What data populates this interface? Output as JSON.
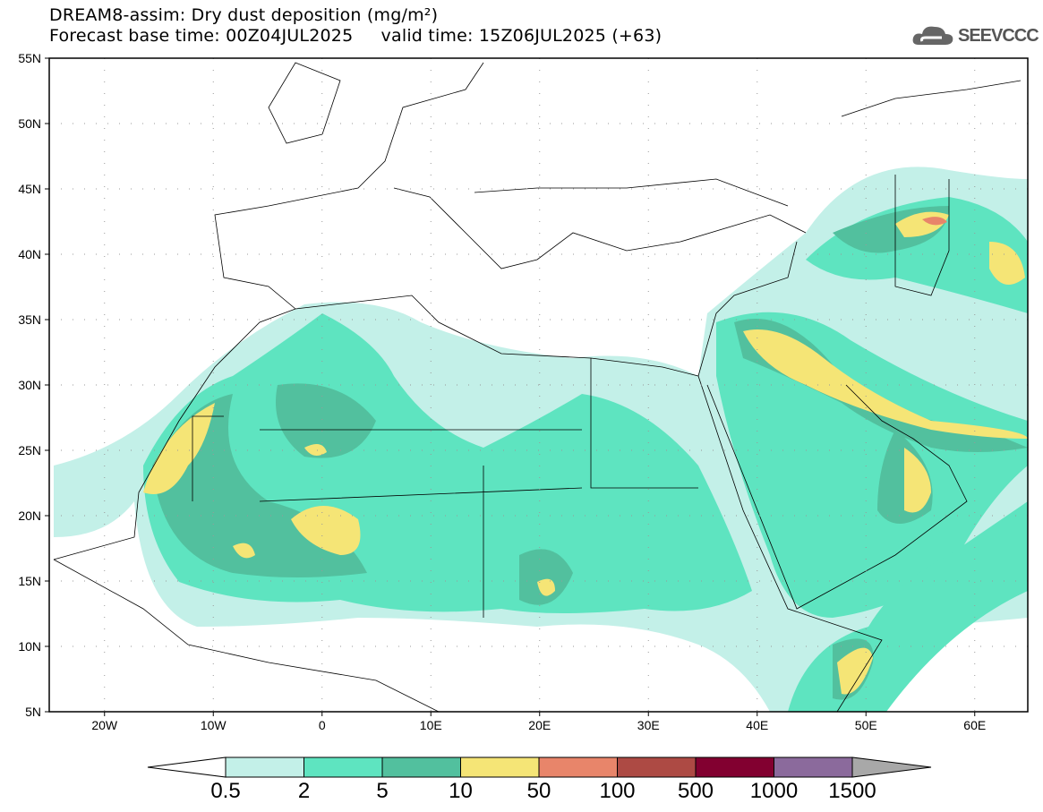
{
  "header": {
    "title": "DREAM8-assim: Dry dust deposition (mg/m²)",
    "forecast_line": "Forecast base time: 00Z04JUL2025     valid time: 15Z06JUL2025 (+63)",
    "logo": "SEEVCCC"
  },
  "map": {
    "lat_labels": [
      "55N",
      "50N",
      "45N",
      "40N",
      "35N",
      "30N",
      "25N",
      "20N",
      "15N",
      "10N",
      "5N"
    ],
    "lon_labels": [
      "20W",
      "10W",
      "0",
      "10E",
      "20E",
      "30E",
      "40E",
      "50E",
      "60E"
    ]
  },
  "legend": {
    "labels": [
      "0.5",
      "2",
      "5",
      "10",
      "50",
      "100",
      "500",
      "1000",
      "1500"
    ],
    "colors": [
      "#c3f0e8",
      "#5ee4c0",
      "#52c09e",
      "#f5e576",
      "#e8856a",
      "#ad4a44",
      "#820030",
      "#8b6a9c"
    ],
    "over_color": "#a8a8a8",
    "under_color": "#ffffff"
  }
}
